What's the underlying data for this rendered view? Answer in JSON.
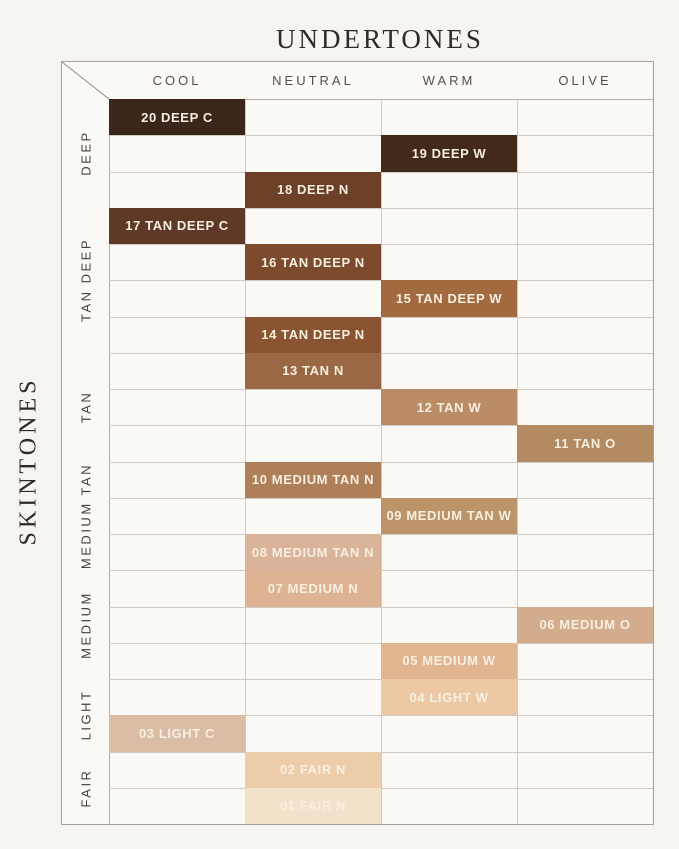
{
  "chart_data": {
    "type": "heatmap",
    "title": "UNDERTONES",
    "ylabel": "SKINTONES",
    "columns": [
      "COOL",
      "NEUTRAL",
      "WARM",
      "OLIVE"
    ],
    "row_groups": [
      {
        "label": "DEEP",
        "rows": 3
      },
      {
        "label": "TAN DEEP",
        "rows": 4
      },
      {
        "label": "TAN",
        "rows": 3
      },
      {
        "label": "MEDIUM TAN",
        "rows": 3
      },
      {
        "label": "MEDIUM",
        "rows": 3
      },
      {
        "label": "LIGHT",
        "rows": 2
      },
      {
        "label": "FAIR",
        "rows": 2
      }
    ],
    "cells": [
      {
        "row": 0,
        "column": "COOL",
        "label": "20 DEEP C",
        "color": "#3a261b"
      },
      {
        "row": 1,
        "column": "WARM",
        "label": "19 DEEP W",
        "color": "#42291a"
      },
      {
        "row": 2,
        "column": "NEUTRAL",
        "label": "18 DEEP N",
        "color": "#6d3f27"
      },
      {
        "row": 3,
        "column": "COOL",
        "label": "17 TAN DEEP C",
        "color": "#5e3a26"
      },
      {
        "row": 4,
        "column": "NEUTRAL",
        "label": "16 TAN DEEP N",
        "color": "#7c4a2c"
      },
      {
        "row": 5,
        "column": "WARM",
        "label": "15 TAN DEEP W",
        "color": "#a36a40"
      },
      {
        "row": 6,
        "column": "NEUTRAL",
        "label": "14 TAN DEEP N",
        "color": "#8a5432"
      },
      {
        "row": 7,
        "column": "NEUTRAL",
        "label": "13 TAN N",
        "color": "#9a6844"
      },
      {
        "row": 8,
        "column": "WARM",
        "label": "12 TAN W",
        "color": "#bb8d66"
      },
      {
        "row": 9,
        "column": "OLIVE",
        "label": "11 TAN O",
        "color": "#b38a61"
      },
      {
        "row": 10,
        "column": "NEUTRAL",
        "label": "10 MEDIUM TAN N",
        "color": "#ae7f58"
      },
      {
        "row": 11,
        "column": "WARM",
        "label": "09 MEDIUM TAN W",
        "color": "#bd9469"
      },
      {
        "row": 12,
        "column": "NEUTRAL",
        "label": "08 MEDIUM TAN N",
        "color": "#d9b49a"
      },
      {
        "row": 13,
        "column": "NEUTRAL",
        "label": "07 MEDIUM N",
        "color": "#ddb394"
      },
      {
        "row": 14,
        "column": "OLIVE",
        "label": "06 MEDIUM O",
        "color": "#d2ac8c"
      },
      {
        "row": 15,
        "column": "WARM",
        "label": "05 MEDIUM W",
        "color": "#e2b591"
      },
      {
        "row": 16,
        "column": "WARM",
        "label": "04 LIGHT W",
        "color": "#ecc9a4"
      },
      {
        "row": 17,
        "column": "COOL",
        "label": "03 LIGHT C",
        "color": "#d9bda4"
      },
      {
        "row": 18,
        "column": "NEUTRAL",
        "label": "02 FAIR N",
        "color": "#edcda9"
      },
      {
        "row": 19,
        "column": "NEUTRAL",
        "label": "01 FAIR N",
        "color": "#f2e2ca"
      }
    ]
  },
  "colors": {
    "background": "#f6f4f1",
    "cell_area_background": "#faf9f6",
    "outer_border": "#a59f97",
    "grid_line": "#cfcbc4",
    "structural_line": "#b3ada5",
    "heading_text": "#2e2a26",
    "column_header_text": "#55504a",
    "group_label_text": "#45413b",
    "cell_text": "#f7efe0"
  }
}
